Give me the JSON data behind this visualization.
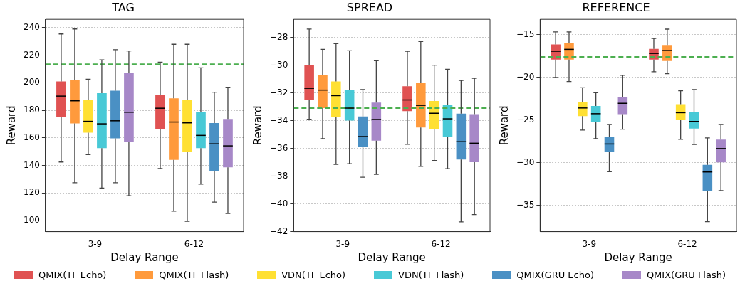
{
  "chart_data": [
    {
      "type": "box",
      "title": "TAG",
      "xlabel": "Delay Range",
      "ylabel": "Reward",
      "categories": [
        "3-9",
        "6-12"
      ],
      "ylim": [
        92,
        246
      ],
      "yticks": [
        100,
        120,
        140,
        160,
        180,
        200,
        220,
        240
      ],
      "grid": "y",
      "legend": "bottom",
      "ref_lines": [
        {
          "axis": "y",
          "value": 213.4,
          "color": "#4caf50",
          "line_style": "dashed"
        }
      ],
      "series": [
        {
          "name": "QMIX(TF Echo)",
          "color": "#e05252",
          "boxes": [
            {
              "low": 142.5,
              "q1": 175.2,
              "median": 190.3,
              "q3": 201,
              "high": 235.4
            },
            {
              "low": 137.8,
              "q1": 166.1,
              "median": 181.5,
              "q3": 190.9,
              "high": 214.9
            }
          ]
        },
        {
          "name": "QMIX(TF Flash)",
          "color": "#ff9a3c",
          "boxes": [
            {
              "low": 127.5,
              "q1": 170.5,
              "median": 186.9,
              "q3": 201.9,
              "high": 239
            },
            {
              "low": 106.8,
              "q1": 144,
              "median": 171.5,
              "q3": 188.7,
              "high": 227.9
            }
          ]
        },
        {
          "name": "VDN(TF Echo)",
          "color": "#ffe033",
          "boxes": [
            {
              "low": 147.9,
              "q1": 163.8,
              "median": 172,
              "q3": 187.6,
              "high": 202.6
            },
            {
              "low": 99.5,
              "q1": 149.8,
              "median": 170.9,
              "q3": 187.7,
              "high": 227.9
            }
          ]
        },
        {
          "name": "VDN(TF Flash)",
          "color": "#48c9d6",
          "boxes": [
            {
              "low": 123.6,
              "q1": 152.6,
              "median": 170.2,
              "q3": 192.4,
              "high": 216.6
            },
            {
              "low": 126.5,
              "q1": 152.6,
              "median": 161.8,
              "q3": 178.6,
              "high": 210.8
            }
          ]
        },
        {
          "name": "QMIX(GRU Echo)",
          "color": "#4a90c4",
          "boxes": [
            {
              "low": 127.5,
              "q1": 159.6,
              "median": 172.4,
              "q3": 194.3,
              "high": 224
            },
            {
              "low": 113.4,
              "q1": 136.1,
              "median": 155.7,
              "q3": 170.7,
              "high": 193.1
            }
          ]
        },
        {
          "name": "QMIX(GRU Flash)",
          "color": "#a788c8",
          "boxes": [
            {
              "low": 118.1,
              "q1": 156.9,
              "median": 178.6,
              "q3": 207.3,
              "high": 223.1
            },
            {
              "low": 105.1,
              "q1": 138.6,
              "median": 154.2,
              "q3": 173.7,
              "high": 196.8
            }
          ]
        }
      ]
    },
    {
      "type": "box",
      "title": "SPREAD",
      "xlabel": "Delay Range",
      "ylabel": "Reward",
      "categories": [
        "3-9",
        "6-12"
      ],
      "ylim": [
        -42,
        -26.7
      ],
      "yticks": [
        -42,
        -40,
        -38,
        -36,
        -34,
        -32,
        -30,
        -28
      ],
      "grid": "y",
      "ref_lines": [
        {
          "axis": "y",
          "value": -33.1,
          "color": "#4caf50",
          "line_style": "dashed"
        }
      ],
      "series": [
        {
          "color": "#e05252",
          "boxes": [
            {
              "low": -33.9,
              "q1": -32.53,
              "median": -31.67,
              "q3": -30,
              "high": -27.4
            },
            {
              "low": -35.7,
              "q1": -33.32,
              "median": -32.51,
              "q3": -31.52,
              "high": -29
            }
          ]
        },
        {
          "color": "#ff9a3c",
          "boxes": [
            {
              "low": -35.3,
              "q1": -33.1,
              "median": -31.8,
              "q3": -30.7,
              "high": -28.86
            },
            {
              "low": -37.3,
              "q1": -34.5,
              "median": -32.9,
              "q3": -31.3,
              "high": -28.3
            }
          ]
        },
        {
          "color": "#ffe033",
          "boxes": [
            {
              "low": -37.15,
              "q1": -33.74,
              "median": -32.2,
              "q3": -31.17,
              "high": -28.45
            },
            {
              "low": -36.88,
              "q1": -34.58,
              "median": -33.47,
              "q3": -32.58,
              "high": -30
            }
          ]
        },
        {
          "color": "#48c9d6",
          "boxes": [
            {
              "low": -37.1,
              "q1": -33.99,
              "median": -33.1,
              "q3": -31.8,
              "high": -28.97
            },
            {
              "low": -37.46,
              "q1": -35.18,
              "median": -33.87,
              "q3": -32.9,
              "high": -30.3
            }
          ]
        },
        {
          "color": "#4a90c4",
          "boxes": [
            {
              "low": -38.08,
              "q1": -35.9,
              "median": -35.15,
              "q3": -33.7,
              "high": -31.76
            },
            {
              "low": -41.3,
              "q1": -36.8,
              "median": -35.52,
              "q3": -33.5,
              "high": -31.1
            }
          ]
        },
        {
          "color": "#a788c8",
          "boxes": [
            {
              "low": -37.87,
              "q1": -35.45,
              "median": -33.92,
              "q3": -32.7,
              "high": -29.68
            },
            {
              "low": -40.77,
              "q1": -37,
              "median": -35.63,
              "q3": -33.54,
              "high": -30.95
            }
          ]
        }
      ]
    },
    {
      "type": "box",
      "title": "REFERENCE",
      "xlabel": "Delay Range",
      "ylabel": "Reward",
      "categories": [
        "3-9",
        "6-12"
      ],
      "ylim": [
        -38.1,
        -13.2
      ],
      "yticks": [
        -35,
        -30,
        -25,
        -20,
        -15
      ],
      "grid": "y",
      "ref_lines": [
        {
          "axis": "y",
          "value": -17.6,
          "color": "#4caf50",
          "line_style": "dashed"
        }
      ],
      "series": [
        {
          "color": "#e05252",
          "boxes": [
            {
              "low": -20.02,
              "q1": -17.92,
              "median": -16.94,
              "q3": -16.15,
              "high": -14.67
            },
            {
              "low": -19.34,
              "q1": -17.92,
              "median": -17.2,
              "q3": -16.66,
              "high": -15.44
            }
          ]
        },
        {
          "color": "#ff9a3c",
          "boxes": [
            {
              "low": -20.5,
              "q1": -17.92,
              "median": -16.72,
              "q3": -15.95,
              "high": -14.67
            },
            {
              "low": -19.58,
              "q1": -18.08,
              "median": -16.86,
              "q3": -16.2,
              "high": -14.35
            }
          ]
        },
        {
          "color": "#ffe033",
          "boxes": [
            {
              "low": -26.19,
              "q1": -24.55,
              "median": -23.6,
              "q3": -22.94,
              "high": -21.22
            },
            {
              "low": -27.28,
              "q1": -25,
              "median": -24.15,
              "q3": -23.16,
              "high": -21.58
            }
          ]
        },
        {
          "color": "#48c9d6",
          "boxes": [
            {
              "low": -27.2,
              "q1": -25.29,
              "median": -24.27,
              "q3": -23.37,
              "high": -21.8
            },
            {
              "low": -27.88,
              "q1": -26.02,
              "median": -25.18,
              "q3": -24.03,
              "high": -21.44
            }
          ]
        },
        {
          "color": "#4a90c4",
          "boxes": [
            {
              "low": -31.07,
              "q1": -28.7,
              "median": -27.82,
              "q3": -27.03,
              "high": -25.53
            },
            {
              "low": -36.94,
              "q1": -33.3,
              "median": -31.1,
              "q3": -30.27,
              "high": -27.1
            }
          ]
        },
        {
          "color": "#a788c8",
          "boxes": [
            {
              "low": -26.08,
              "q1": -24.33,
              "median": -23.05,
              "q3": -22.33,
              "high": -19.77
            },
            {
              "low": -33.28,
              "q1": -29.97,
              "median": -28.36,
              "q3": -27.3,
              "high": -25.53
            }
          ]
        }
      ]
    }
  ]
}
